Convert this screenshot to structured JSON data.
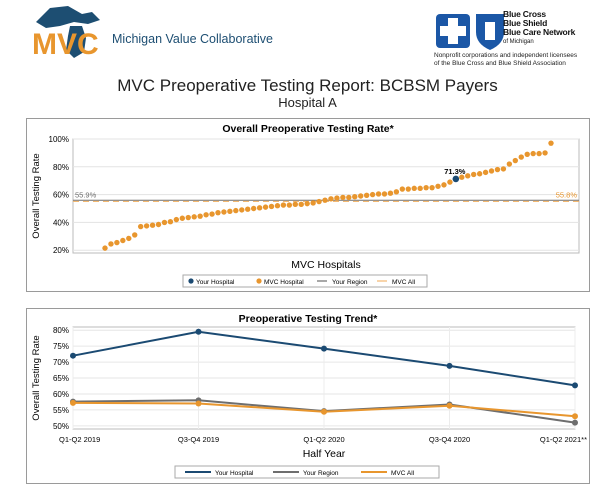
{
  "header": {
    "mvc_logo_letters": "MVC",
    "mvc_name": "Michigan Value Collaborative",
    "bcbs_name_lines": [
      "Blue Cross",
      "Blue Shield",
      "Blue Care Network"
    ],
    "bcbs_of": "of Michigan",
    "bcbs_note_lines": [
      "Nonprofit corporations and independent licensees",
      "of the Blue Cross and Blue Shield Association"
    ]
  },
  "report": {
    "title": "MVC Preoperative Testing Report: BCBSM Payers",
    "subtitle": "Hospital A"
  },
  "colors": {
    "your_hospital": "#1b4a72",
    "mvc_orange": "#e8962e",
    "region_gray": "#6e6e6e",
    "mvc_all_line": "#f2b872"
  },
  "chart_data": [
    {
      "type": "scatter",
      "title": "Overall Preoperative Testing Rate*",
      "xlabel": "MVC Hospitals",
      "ylabel": "Overall Testing Rate",
      "ylim": [
        18,
        100
      ],
      "yticks": [
        20,
        40,
        60,
        80,
        100
      ],
      "ytick_labels": [
        "20%",
        "40%",
        "60%",
        "80%",
        "100%"
      ],
      "grid": "horizontal",
      "series": [
        {
          "name": "MVC Hospital",
          "values": [
            21.5,
            24.5,
            25.5,
            27.0,
            28.5,
            31.0,
            37.0,
            37.5,
            38.0,
            38.5,
            40.0,
            40.5,
            42.0,
            43.0,
            43.5,
            44.0,
            44.5,
            45.5,
            46.0,
            47.0,
            47.5,
            48.0,
            48.5,
            49.0,
            49.5,
            50.0,
            50.5,
            51.0,
            51.5,
            52.0,
            52.5,
            52.5,
            53.0,
            53.0,
            53.5,
            54.0,
            55.0,
            56.0,
            57.0,
            57.5,
            58.0,
            58.0,
            58.5,
            59.0,
            59.5,
            60.0,
            60.5,
            60.5,
            61.0,
            62.0,
            64.0,
            64.0,
            64.5,
            64.5,
            65.0,
            65.0,
            66.0,
            67.0,
            69.0,
            71.3,
            72.5,
            73.5,
            74.5,
            75.0,
            76.0,
            77.0,
            78.0,
            78.5,
            82.0,
            84.5,
            87.0,
            89.0,
            89.5,
            89.5,
            90.0,
            97.0
          ]
        },
        {
          "name": "Your Hospital",
          "index": 59,
          "value": 71.3,
          "label": "71.3%"
        }
      ],
      "reference_lines": [
        {
          "name": "Your Region",
          "value": 55.9,
          "label": "55.9%"
        },
        {
          "name": "MVC All",
          "value": 55.8,
          "label": "55.8%"
        }
      ],
      "legend": [
        "Your Hospital",
        "MVC Hospital",
        "Your Region",
        "MVC All"
      ],
      "legend_placement": "bottom"
    },
    {
      "type": "line",
      "title": "Preoperative Testing Trend*",
      "xlabel": "Half Year",
      "ylabel": "Overall Testing Rate",
      "categories": [
        "Q1-Q2 2019",
        "Q3-Q4 2019",
        "Q1-Q2 2020",
        "Q3-Q4 2020",
        "Q1-Q2 2021**"
      ],
      "ylim": [
        49,
        81
      ],
      "yticks": [
        50,
        55,
        60,
        65,
        70,
        75,
        80
      ],
      "ytick_labels": [
        "50%",
        "55%",
        "60%",
        "65%",
        "70%",
        "75%",
        "80%"
      ],
      "grid": "both",
      "series": [
        {
          "name": "Your Hospital",
          "values": [
            72.0,
            79.5,
            74.2,
            68.8,
            62.7
          ]
        },
        {
          "name": "Your Region",
          "values": [
            57.6,
            58.0,
            54.6,
            56.7,
            51.0
          ]
        },
        {
          "name": "MVC All",
          "values": [
            57.2,
            57.0,
            54.4,
            56.3,
            53.0
          ]
        }
      ],
      "legend": [
        "Your Hospital",
        "Your Region",
        "MVC All"
      ],
      "legend_placement": "bottom"
    }
  ]
}
